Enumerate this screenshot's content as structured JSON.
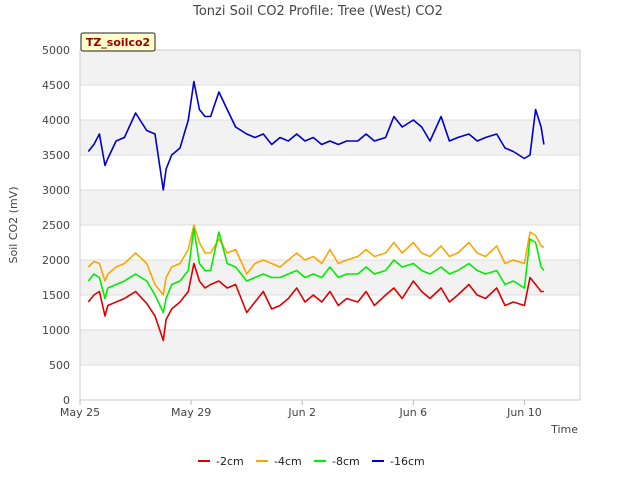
{
  "chart_data": {
    "type": "line",
    "title": "Tonzi Soil CO2 Profile: Tree (West) CO2",
    "xlabel": "Time",
    "ylabel": "Soil CO2 (mV)",
    "ylim": [
      0,
      5000
    ],
    "yticks": [
      0,
      500,
      1000,
      1500,
      2000,
      2500,
      3000,
      3500,
      4000,
      4500,
      5000
    ],
    "xlim": [
      0,
      18
    ],
    "xticks": [
      {
        "value": 0,
        "label": "May 25"
      },
      {
        "value": 4,
        "label": "May 29"
      },
      {
        "value": 8,
        "label": "Jun 2"
      },
      {
        "value": 12,
        "label": "Jun 6"
      },
      {
        "value": 16,
        "label": "Jun 10"
      }
    ],
    "tag": "TZ_soilco2",
    "grid": true,
    "legend_position": "bottom",
    "series": [
      {
        "name": "-2cm",
        "color": "#dd0000",
        "x": [
          0.3,
          0.5,
          0.7,
          0.9,
          1.0,
          1.3,
          1.6,
          2.0,
          2.4,
          2.7,
          3.0,
          3.1,
          3.3,
          3.6,
          3.9,
          4.1,
          4.3,
          4.5,
          4.7,
          5.0,
          5.3,
          5.6,
          6.0,
          6.3,
          6.6,
          6.9,
          7.2,
          7.5,
          7.8,
          8.1,
          8.4,
          8.7,
          9.0,
          9.3,
          9.6,
          10.0,
          10.3,
          10.6,
          11.0,
          11.3,
          11.6,
          12.0,
          12.3,
          12.6,
          13.0,
          13.3,
          13.6,
          14.0,
          14.3,
          14.6,
          15.0,
          15.3,
          15.6,
          16.0,
          16.2,
          16.4,
          16.6,
          16.7
        ],
        "values": [
          1400,
          1500,
          1550,
          1200,
          1350,
          1400,
          1450,
          1550,
          1380,
          1200,
          850,
          1150,
          1300,
          1400,
          1550,
          1950,
          1700,
          1600,
          1650,
          1700,
          1600,
          1650,
          1250,
          1400,
          1550,
          1300,
          1350,
          1450,
          1600,
          1400,
          1500,
          1400,
          1550,
          1350,
          1450,
          1400,
          1550,
          1350,
          1500,
          1600,
          1450,
          1700,
          1550,
          1450,
          1600,
          1400,
          1500,
          1650,
          1500,
          1450,
          1600,
          1350,
          1400,
          1350,
          1750,
          1650,
          1550,
          1550
        ]
      },
      {
        "name": "-4cm",
        "color": "#ffa500",
        "x": [
          0.3,
          0.5,
          0.7,
          0.9,
          1.0,
          1.3,
          1.6,
          2.0,
          2.4,
          2.7,
          3.0,
          3.1,
          3.3,
          3.6,
          3.9,
          4.1,
          4.3,
          4.5,
          4.7,
          5.0,
          5.3,
          5.6,
          6.0,
          6.3,
          6.6,
          6.9,
          7.2,
          7.5,
          7.8,
          8.1,
          8.4,
          8.7,
          9.0,
          9.3,
          9.6,
          10.0,
          10.3,
          10.6,
          11.0,
          11.3,
          11.6,
          12.0,
          12.3,
          12.6,
          13.0,
          13.3,
          13.6,
          14.0,
          14.3,
          14.6,
          15.0,
          15.3,
          15.6,
          16.0,
          16.2,
          16.4,
          16.6,
          16.7
        ],
        "values": [
          1900,
          1980,
          1950,
          1700,
          1800,
          1900,
          1950,
          2100,
          1950,
          1650,
          1500,
          1750,
          1900,
          1950,
          2150,
          2500,
          2250,
          2100,
          2100,
          2300,
          2100,
          2150,
          1800,
          1950,
          2000,
          1950,
          1900,
          2000,
          2100,
          2000,
          2050,
          1950,
          2150,
          1950,
          2000,
          2050,
          2150,
          2050,
          2100,
          2250,
          2100,
          2250,
          2100,
          2050,
          2200,
          2050,
          2100,
          2250,
          2100,
          2050,
          2200,
          1950,
          2000,
          1950,
          2400,
          2350,
          2200,
          2180
        ]
      },
      {
        "name": "-8cm",
        "color": "#00ee00",
        "x": [
          0.3,
          0.5,
          0.7,
          0.9,
          1.0,
          1.3,
          1.6,
          2.0,
          2.4,
          2.7,
          3.0,
          3.1,
          3.3,
          3.6,
          3.9,
          4.1,
          4.3,
          4.5,
          4.7,
          5.0,
          5.3,
          5.6,
          6.0,
          6.3,
          6.6,
          6.9,
          7.2,
          7.5,
          7.8,
          8.1,
          8.4,
          8.7,
          9.0,
          9.3,
          9.6,
          10.0,
          10.3,
          10.6,
          11.0,
          11.3,
          11.6,
          12.0,
          12.3,
          12.6,
          13.0,
          13.3,
          13.6,
          14.0,
          14.3,
          14.6,
          15.0,
          15.3,
          15.6,
          16.0,
          16.2,
          16.4,
          16.6,
          16.7
        ],
        "values": [
          1700,
          1800,
          1750,
          1450,
          1600,
          1650,
          1700,
          1800,
          1700,
          1500,
          1250,
          1450,
          1650,
          1700,
          1850,
          2450,
          1950,
          1850,
          1850,
          2400,
          1950,
          1900,
          1700,
          1750,
          1800,
          1750,
          1750,
          1800,
          1850,
          1750,
          1800,
          1750,
          1900,
          1750,
          1800,
          1800,
          1900,
          1800,
          1850,
          2000,
          1900,
          1950,
          1850,
          1800,
          1900,
          1800,
          1850,
          1950,
          1850,
          1800,
          1850,
          1650,
          1700,
          1600,
          2300,
          2250,
          1900,
          1850
        ]
      },
      {
        "name": "-16cm",
        "color": "#0000cc",
        "x": [
          0.3,
          0.5,
          0.7,
          0.9,
          1.0,
          1.3,
          1.6,
          2.0,
          2.4,
          2.7,
          3.0,
          3.1,
          3.3,
          3.6,
          3.9,
          4.1,
          4.3,
          4.5,
          4.7,
          5.0,
          5.3,
          5.6,
          6.0,
          6.3,
          6.6,
          6.9,
          7.2,
          7.5,
          7.8,
          8.1,
          8.4,
          8.7,
          9.0,
          9.3,
          9.6,
          10.0,
          10.3,
          10.6,
          11.0,
          11.3,
          11.6,
          12.0,
          12.3,
          12.6,
          13.0,
          13.3,
          13.6,
          14.0,
          14.3,
          14.6,
          15.0,
          15.3,
          15.6,
          16.0,
          16.2,
          16.4,
          16.6,
          16.7
        ],
        "values": [
          3550,
          3650,
          3800,
          3350,
          3450,
          3700,
          3750,
          4100,
          3850,
          3800,
          3000,
          3300,
          3500,
          3600,
          4000,
          4550,
          4150,
          4050,
          4050,
          4400,
          4150,
          3900,
          3800,
          3750,
          3800,
          3650,
          3750,
          3700,
          3800,
          3700,
          3750,
          3650,
          3700,
          3650,
          3700,
          3700,
          3800,
          3700,
          3750,
          4050,
          3900,
          4000,
          3900,
          3700,
          4050,
          3700,
          3750,
          3800,
          3700,
          3750,
          3800,
          3600,
          3550,
          3450,
          3500,
          4150,
          3900,
          3650
        ]
      }
    ]
  }
}
